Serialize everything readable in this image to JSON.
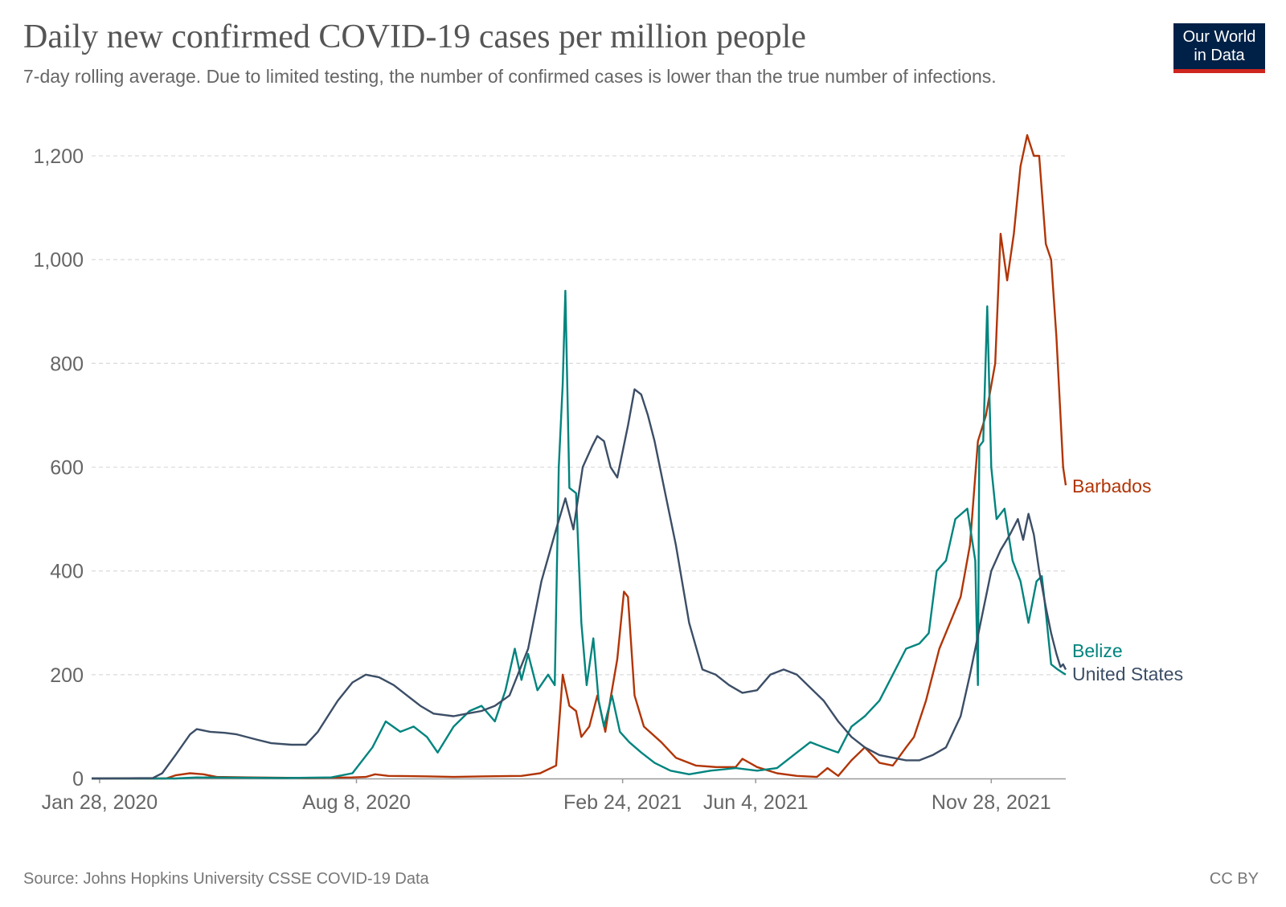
{
  "header": {
    "title": "Daily new confirmed COVID-19 cases per million people",
    "subtitle": "7-day rolling average. Due to limited testing, the number of confirmed cases is lower than the true number of infections.",
    "logo_line1": "Our World",
    "logo_line2": "in Data"
  },
  "footer": {
    "source": "Source: Johns Hopkins University CSSE COVID-19 Data",
    "license": "CC BY"
  },
  "colors": {
    "logo_background": "#002147",
    "logo_accent": "#ce261e"
  },
  "chart_data": {
    "type": "line",
    "title": "Daily new confirmed COVID-19 cases per million people",
    "subtitle": "7-day rolling average. Due to limited testing, the number of confirmed cases is lower than the true number of infections.",
    "xlabel": "",
    "ylabel": "",
    "x_range": [
      "2020-01-22",
      "2022-01-23"
    ],
    "xticks": [
      {
        "date": "2020-01-28",
        "label": "Jan 28, 2020"
      },
      {
        "date": "2020-08-08",
        "label": "Aug 8, 2020"
      },
      {
        "date": "2021-02-24",
        "label": "Feb 24, 2021"
      },
      {
        "date": "2021-06-04",
        "label": "Jun 4, 2021"
      },
      {
        "date": "2021-11-28",
        "label": "Nov 28, 2021"
      }
    ],
    "ylim": [
      0,
      1200
    ],
    "yticks": [
      0,
      200,
      400,
      600,
      800,
      1000,
      1200
    ],
    "ytick_labels": [
      "0",
      "200",
      "400",
      "600",
      "800",
      "1,000",
      "1,200"
    ],
    "grid": "horizontal dashed",
    "legend": "labels at right end of lines",
    "series": [
      {
        "name": "Barbados",
        "color": "#b13507",
        "points": [
          [
            "2020-01-22",
            0
          ],
          [
            "2020-03-18",
            0
          ],
          [
            "2020-03-25",
            6
          ],
          [
            "2020-04-05",
            10
          ],
          [
            "2020-04-15",
            8
          ],
          [
            "2020-04-25",
            3
          ],
          [
            "2020-05-20",
            2
          ],
          [
            "2020-07-01",
            1
          ],
          [
            "2020-08-05",
            2
          ],
          [
            "2020-08-15",
            3
          ],
          [
            "2020-08-22",
            8
          ],
          [
            "2020-09-01",
            5
          ],
          [
            "2020-10-01",
            4
          ],
          [
            "2020-10-20",
            3
          ],
          [
            "2020-11-10",
            4
          ],
          [
            "2020-12-10",
            5
          ],
          [
            "2020-12-24",
            10
          ],
          [
            "2021-01-05",
            25
          ],
          [
            "2021-01-10",
            200
          ],
          [
            "2021-01-15",
            140
          ],
          [
            "2021-01-20",
            130
          ],
          [
            "2021-01-24",
            80
          ],
          [
            "2021-01-30",
            100
          ],
          [
            "2021-02-05",
            160
          ],
          [
            "2021-02-11",
            90
          ],
          [
            "2021-02-15",
            155
          ],
          [
            "2021-02-20",
            230
          ],
          [
            "2021-02-25",
            360
          ],
          [
            "2021-02-28",
            350
          ],
          [
            "2021-03-05",
            160
          ],
          [
            "2021-03-12",
            100
          ],
          [
            "2021-03-25",
            70
          ],
          [
            "2021-04-05",
            40
          ],
          [
            "2021-04-20",
            25
          ],
          [
            "2021-05-05",
            22
          ],
          [
            "2021-05-20",
            22
          ],
          [
            "2021-05-25",
            38
          ],
          [
            "2021-06-05",
            22
          ],
          [
            "2021-06-20",
            10
          ],
          [
            "2021-07-05",
            5
          ],
          [
            "2021-07-20",
            3
          ],
          [
            "2021-07-28",
            20
          ],
          [
            "2021-08-05",
            5
          ],
          [
            "2021-08-15",
            35
          ],
          [
            "2021-08-25",
            60
          ],
          [
            "2021-09-05",
            30
          ],
          [
            "2021-09-15",
            25
          ],
          [
            "2021-09-25",
            60
          ],
          [
            "2021-10-01",
            80
          ],
          [
            "2021-10-10",
            150
          ],
          [
            "2021-10-20",
            250
          ],
          [
            "2021-10-28",
            300
          ],
          [
            "2021-11-05",
            350
          ],
          [
            "2021-11-12",
            450
          ],
          [
            "2021-11-18",
            650
          ],
          [
            "2021-11-24",
            700
          ],
          [
            "2021-12-01",
            800
          ],
          [
            "2021-12-05",
            1050
          ],
          [
            "2021-12-10",
            960
          ],
          [
            "2021-12-15",
            1050
          ],
          [
            "2021-12-20",
            1180
          ],
          [
            "2021-12-25",
            1240
          ],
          [
            "2021-12-30",
            1200
          ],
          [
            "2022-01-03",
            1200
          ],
          [
            "2022-01-08",
            1030
          ],
          [
            "2022-01-12",
            1000
          ],
          [
            "2022-01-16",
            850
          ],
          [
            "2022-01-19",
            700
          ],
          [
            "2022-01-21",
            600
          ],
          [
            "2022-01-23",
            565
          ]
        ]
      },
      {
        "name": "Belize",
        "color": "#00847e",
        "points": [
          [
            "2020-01-22",
            0
          ],
          [
            "2020-03-25",
            0
          ],
          [
            "2020-04-10",
            2
          ],
          [
            "2020-06-15",
            1
          ],
          [
            "2020-07-20",
            2
          ],
          [
            "2020-08-05",
            10
          ],
          [
            "2020-08-20",
            60
          ],
          [
            "2020-08-30",
            110
          ],
          [
            "2020-09-10",
            90
          ],
          [
            "2020-09-20",
            100
          ],
          [
            "2020-09-30",
            80
          ],
          [
            "2020-10-08",
            50
          ],
          [
            "2020-10-20",
            100
          ],
          [
            "2020-11-01",
            130
          ],
          [
            "2020-11-10",
            140
          ],
          [
            "2020-11-20",
            110
          ],
          [
            "2020-11-28",
            170
          ],
          [
            "2020-12-05",
            250
          ],
          [
            "2020-12-10",
            190
          ],
          [
            "2020-12-15",
            240
          ],
          [
            "2020-12-22",
            170
          ],
          [
            "2020-12-30",
            200
          ],
          [
            "2021-01-04",
            180
          ],
          [
            "2021-01-07",
            600
          ],
          [
            "2021-01-10",
            760
          ],
          [
            "2021-01-12",
            940
          ],
          [
            "2021-01-15",
            560
          ],
          [
            "2021-01-20",
            550
          ],
          [
            "2021-01-24",
            300
          ],
          [
            "2021-01-28",
            180
          ],
          [
            "2021-02-02",
            270
          ],
          [
            "2021-02-06",
            150
          ],
          [
            "2021-02-10",
            100
          ],
          [
            "2021-02-16",
            160
          ],
          [
            "2021-02-22",
            90
          ],
          [
            "2021-03-01",
            70
          ],
          [
            "2021-03-10",
            50
          ],
          [
            "2021-03-20",
            30
          ],
          [
            "2021-04-01",
            15
          ],
          [
            "2021-04-15",
            8
          ],
          [
            "2021-05-01",
            15
          ],
          [
            "2021-05-20",
            20
          ],
          [
            "2021-06-05",
            15
          ],
          [
            "2021-06-20",
            20
          ],
          [
            "2021-07-05",
            50
          ],
          [
            "2021-07-15",
            70
          ],
          [
            "2021-07-25",
            60
          ],
          [
            "2021-08-05",
            50
          ],
          [
            "2021-08-15",
            100
          ],
          [
            "2021-08-25",
            120
          ],
          [
            "2021-09-05",
            150
          ],
          [
            "2021-09-15",
            200
          ],
          [
            "2021-09-25",
            250
          ],
          [
            "2021-10-05",
            260
          ],
          [
            "2021-10-12",
            280
          ],
          [
            "2021-10-18",
            400
          ],
          [
            "2021-10-25",
            420
          ],
          [
            "2021-11-01",
            500
          ],
          [
            "2021-11-10",
            520
          ],
          [
            "2021-11-16",
            420
          ],
          [
            "2021-11-18",
            180
          ],
          [
            "2021-11-19",
            640
          ],
          [
            "2021-11-22",
            650
          ],
          [
            "2021-11-25",
            910
          ],
          [
            "2021-11-28",
            600
          ],
          [
            "2021-12-02",
            500
          ],
          [
            "2021-12-08",
            520
          ],
          [
            "2021-12-14",
            420
          ],
          [
            "2021-12-20",
            380
          ],
          [
            "2021-12-26",
            300
          ],
          [
            "2022-01-01",
            380
          ],
          [
            "2022-01-05",
            390
          ],
          [
            "2022-01-08",
            320
          ],
          [
            "2022-01-12",
            220
          ],
          [
            "2022-01-17",
            210
          ],
          [
            "2022-01-20",
            205
          ],
          [
            "2022-01-23",
            200
          ]
        ]
      },
      {
        "name": "United States",
        "color": "#3c4e66",
        "points": [
          [
            "2020-01-22",
            0
          ],
          [
            "2020-03-08",
            1
          ],
          [
            "2020-03-15",
            10
          ],
          [
            "2020-03-25",
            45
          ],
          [
            "2020-04-05",
            85
          ],
          [
            "2020-04-10",
            95
          ],
          [
            "2020-04-20",
            90
          ],
          [
            "2020-05-01",
            88
          ],
          [
            "2020-05-10",
            85
          ],
          [
            "2020-05-25",
            75
          ],
          [
            "2020-06-05",
            68
          ],
          [
            "2020-06-20",
            65
          ],
          [
            "2020-07-01",
            65
          ],
          [
            "2020-07-10",
            90
          ],
          [
            "2020-07-20",
            130
          ],
          [
            "2020-07-25",
            150
          ],
          [
            "2020-08-05",
            185
          ],
          [
            "2020-08-15",
            200
          ],
          [
            "2020-08-25",
            195
          ],
          [
            "2020-09-05",
            180
          ],
          [
            "2020-09-15",
            160
          ],
          [
            "2020-09-25",
            140
          ],
          [
            "2020-10-05",
            125
          ],
          [
            "2020-10-20",
            120
          ],
          [
            "2020-10-30",
            125
          ],
          [
            "2020-11-10",
            130
          ],
          [
            "2020-11-20",
            140
          ],
          [
            "2020-12-01",
            160
          ],
          [
            "2020-12-15",
            250
          ],
          [
            "2020-12-25",
            380
          ],
          [
            "2021-01-05",
            480
          ],
          [
            "2021-01-12",
            540
          ],
          [
            "2021-01-18",
            480
          ],
          [
            "2021-01-25",
            600
          ],
          [
            "2021-02-01",
            640
          ],
          [
            "2021-02-05",
            660
          ],
          [
            "2021-02-10",
            650
          ],
          [
            "2021-02-15",
            600
          ],
          [
            "2021-02-20",
            580
          ],
          [
            "2021-02-28",
            680
          ],
          [
            "2021-03-05",
            750
          ],
          [
            "2021-03-10",
            740
          ],
          [
            "2021-03-15",
            700
          ],
          [
            "2021-03-20",
            650
          ],
          [
            "2021-03-28",
            550
          ],
          [
            "2021-04-05",
            450
          ],
          [
            "2021-04-15",
            300
          ],
          [
            "2021-04-25",
            210
          ],
          [
            "2021-05-05",
            200
          ],
          [
            "2021-05-15",
            180
          ],
          [
            "2021-05-25",
            165
          ],
          [
            "2021-06-05",
            170
          ],
          [
            "2021-06-15",
            200
          ],
          [
            "2021-06-25",
            210
          ],
          [
            "2021-07-05",
            200
          ],
          [
            "2021-07-15",
            175
          ],
          [
            "2021-07-25",
            150
          ],
          [
            "2021-08-05",
            110
          ],
          [
            "2021-08-15",
            80
          ],
          [
            "2021-08-25",
            60
          ],
          [
            "2021-09-05",
            45
          ],
          [
            "2021-09-15",
            40
          ],
          [
            "2021-09-25",
            35
          ],
          [
            "2021-10-05",
            35
          ],
          [
            "2021-10-15",
            45
          ],
          [
            "2021-10-25",
            60
          ],
          [
            "2021-11-05",
            120
          ],
          [
            "2021-11-12",
            200
          ],
          [
            "2021-11-20",
            300
          ],
          [
            "2021-11-28",
            400
          ],
          [
            "2021-12-05",
            440
          ],
          [
            "2021-12-12",
            470
          ],
          [
            "2021-12-18",
            500
          ],
          [
            "2021-12-22",
            460
          ],
          [
            "2021-12-26",
            510
          ],
          [
            "2021-12-30",
            470
          ],
          [
            "2022-01-03",
            400
          ],
          [
            "2022-01-08",
            330
          ],
          [
            "2022-01-12",
            280
          ],
          [
            "2022-01-16",
            240
          ],
          [
            "2022-01-19",
            215
          ],
          [
            "2022-01-21",
            220
          ],
          [
            "2022-01-23",
            210
          ]
        ]
      }
    ]
  }
}
